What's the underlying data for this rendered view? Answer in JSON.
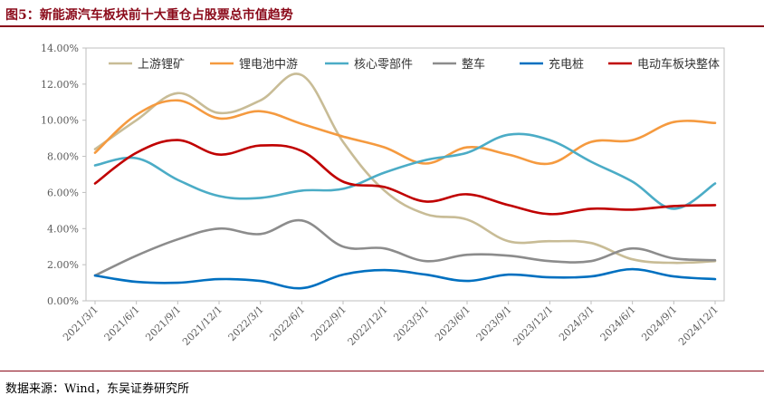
{
  "figure": {
    "title": "图5：新能源汽车板块前十大重仓占股票总市值趋势",
    "source": "数据来源：Wind，东吴证券研究所"
  },
  "chart_data": {
    "type": "line",
    "title": "图5：新能源汽车板块前十大重仓占股票总市值趋势",
    "xlabel": "",
    "ylabel": "",
    "ylim": [
      0,
      14
    ],
    "yticks": [
      "0.00%",
      "2.00%",
      "4.00%",
      "6.00%",
      "8.00%",
      "10.00%",
      "12.00%",
      "14.00%"
    ],
    "categories": [
      "2021/3/1",
      "2021/6/1",
      "2021/9/1",
      "2021/12/1",
      "2022/3/1",
      "2022/6/1",
      "2022/9/1",
      "2022/12/1",
      "2023/3/1",
      "2023/6/1",
      "2023/9/1",
      "2023/12/1",
      "2024/3/1",
      "2024/6/1",
      "2024/9/1",
      "2024/12/1"
    ],
    "legend_position": "top",
    "series": [
      {
        "name": "上游锂矿",
        "color": "#c8bc96",
        "values": [
          8.4,
          10.0,
          11.5,
          10.4,
          11.1,
          12.5,
          8.8,
          6.1,
          4.8,
          4.5,
          3.3,
          3.3,
          3.2,
          2.3,
          2.1,
          2.2
        ]
      },
      {
        "name": "锂电池中游",
        "color": "#f59a3f",
        "values": [
          8.2,
          10.3,
          11.1,
          10.1,
          10.5,
          9.8,
          9.1,
          8.5,
          7.6,
          8.5,
          8.1,
          7.6,
          8.8,
          8.9,
          9.9,
          9.85
        ]
      },
      {
        "name": "核心零部件",
        "color": "#4bacc6",
        "values": [
          7.5,
          7.9,
          6.7,
          5.8,
          5.7,
          6.1,
          6.2,
          7.1,
          7.8,
          8.2,
          9.2,
          8.9,
          7.7,
          6.6,
          5.1,
          6.5
        ]
      },
      {
        "name": "整车",
        "color": "#8c8c8c",
        "values": [
          1.4,
          2.5,
          3.4,
          4.0,
          3.7,
          4.45,
          3.0,
          2.9,
          2.2,
          2.55,
          2.5,
          2.2,
          2.2,
          2.9,
          2.35,
          2.25
        ]
      },
      {
        "name": "充电桩",
        "color": "#0070c0",
        "values": [
          1.4,
          1.05,
          1.0,
          1.2,
          1.1,
          0.7,
          1.45,
          1.7,
          1.45,
          1.1,
          1.45,
          1.3,
          1.35,
          1.75,
          1.35,
          1.2
        ]
      },
      {
        "name": "电动车板块整体",
        "color": "#c00000",
        "values": [
          6.5,
          8.2,
          8.9,
          8.1,
          8.6,
          8.3,
          6.6,
          6.3,
          5.5,
          5.9,
          5.3,
          4.8,
          5.1,
          5.05,
          5.25,
          5.3
        ]
      }
    ]
  }
}
